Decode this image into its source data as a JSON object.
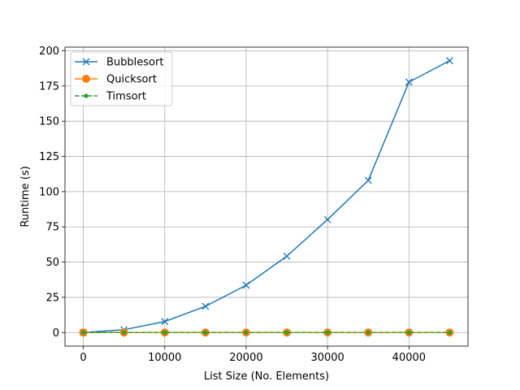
{
  "chart_data": {
    "type": "line",
    "title": "",
    "xlabel": "List Size (No. Elements)",
    "ylabel": "Runtime (s)",
    "xlim": [
      -2250,
      47250
    ],
    "ylim": [
      -9.65,
      202.6
    ],
    "xticks": [
      0,
      10000,
      20000,
      30000,
      40000
    ],
    "yticks": [
      0,
      25,
      50,
      75,
      100,
      125,
      150,
      175,
      200
    ],
    "grid": true,
    "legend_position": "top-left",
    "x": [
      0,
      5000,
      10000,
      15000,
      20000,
      25000,
      30000,
      35000,
      40000,
      45000
    ],
    "series": [
      {
        "name": "Bubblesort",
        "color": "#1f77b4",
        "marker": "x",
        "linestyle": "solid",
        "values": [
          0.0,
          2.0,
          7.8,
          18.6,
          33.6,
          54.2,
          80.2,
          108.0,
          177.8,
          193.0
        ]
      },
      {
        "name": "Quicksort",
        "color": "#ff7f0e",
        "marker": "circle",
        "linestyle": "solid",
        "values": [
          0,
          0,
          0,
          0,
          0,
          0,
          0,
          0,
          0,
          0
        ]
      },
      {
        "name": "Timsort",
        "color": "#2ca02c",
        "marker": "dot",
        "linestyle": "dashed",
        "values": [
          0,
          0,
          0,
          0,
          0,
          0,
          0,
          0,
          0,
          0
        ]
      }
    ]
  }
}
